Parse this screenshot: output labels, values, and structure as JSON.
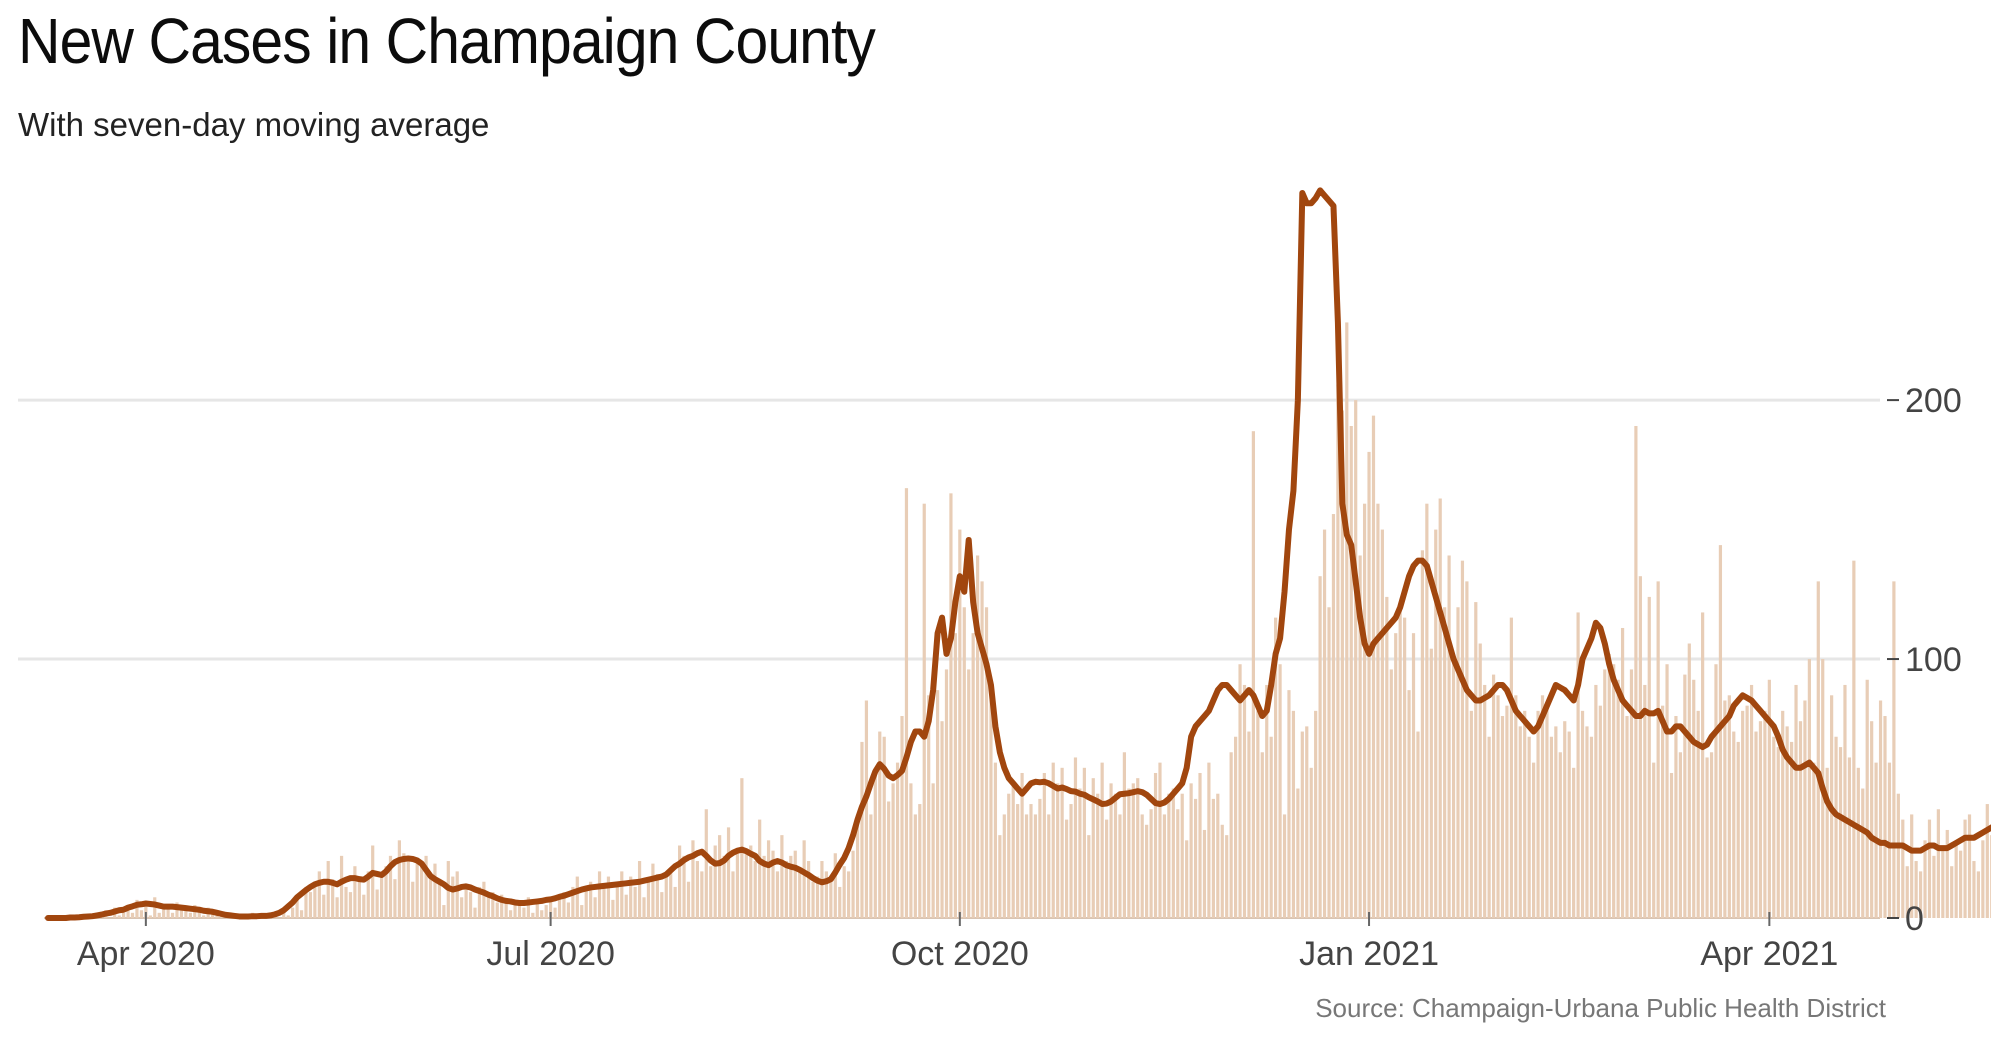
{
  "title": "New Cases in Champaign County",
  "subtitle": "With seven-day moving average",
  "source": "Source: Champaign-Urbana Public Health District",
  "colors": {
    "bars": "#e8cdb6",
    "line": "#a1460e",
    "grid": "#e6e6e6",
    "axis_text": "#444444"
  },
  "chart_data": {
    "type": "bar",
    "overlay": "line",
    "x_ticks": [
      {
        "label": "Apr 2020",
        "date": "2020-04-01"
      },
      {
        "label": "Jul 2020",
        "date": "2020-07-01"
      },
      {
        "label": "Oct 2020",
        "date": "2020-10-01"
      },
      {
        "label": "Jan 2021",
        "date": "2021-01-01"
      },
      {
        "label": "Apr 2021",
        "date": "2021-04-01"
      }
    ],
    "y_ticks": [
      0,
      100,
      200
    ],
    "y_axis_side": "right",
    "xlim": [
      "2020-03-10",
      "2021-04-27"
    ],
    "ylim": [
      0,
      285
    ],
    "grid": "horizontal",
    "series": [
      {
        "type": "bar",
        "x_start": "2020-03-10",
        "values": [
          0,
          0,
          0,
          0,
          0,
          1,
          0,
          0,
          1,
          1,
          0,
          2,
          1,
          3,
          0,
          4,
          1,
          2,
          5,
          2,
          7,
          3,
          6,
          1,
          8,
          2,
          4,
          5,
          2,
          6,
          3,
          4,
          2,
          5,
          3,
          1,
          4,
          2,
          3,
          2,
          0,
          2,
          1,
          0,
          1,
          1,
          2,
          1,
          0,
          1,
          1,
          1,
          0,
          3,
          1,
          4,
          8,
          3,
          12,
          10,
          14,
          18,
          9,
          22,
          15,
          8,
          24,
          12,
          10,
          20,
          14,
          9,
          18,
          28,
          11,
          16,
          20,
          24,
          15,
          30,
          25,
          22,
          14,
          22,
          21,
          24,
          17,
          21,
          14,
          5,
          22,
          16,
          18,
          8,
          12,
          10,
          4,
          12,
          14,
          8,
          10,
          6,
          9,
          7,
          3,
          5,
          6,
          4,
          8,
          2,
          6,
          3,
          5,
          7,
          4,
          9,
          10,
          6,
          12,
          16,
          5,
          11,
          14,
          8,
          18,
          12,
          16,
          7,
          13,
          18,
          9,
          16,
          12,
          22,
          8,
          14,
          21,
          17,
          10,
          16,
          18,
          12,
          28,
          24,
          14,
          30,
          22,
          18,
          42,
          20,
          28,
          32,
          24,
          35,
          18,
          26,
          54,
          25,
          28,
          22,
          38,
          24,
          30,
          26,
          18,
          32,
          22,
          24,
          26,
          18,
          30,
          22,
          14,
          16,
          22,
          18,
          14,
          25,
          12,
          20,
          18,
          26,
          40,
          68,
          84,
          40,
          58,
          72,
          70,
          45,
          52,
          60,
          78,
          166,
          52,
          40,
          44,
          160,
          86,
          52,
          88,
          76,
          96,
          164,
          110,
          150,
          120,
          96,
          110,
          140,
          130,
          120,
          88,
          60,
          32,
          40,
          48,
          52,
          44,
          56,
          40,
          44,
          40,
          46,
          56,
          40,
          60,
          52,
          58,
          38,
          44,
          62,
          50,
          58,
          32,
          54,
          48,
          60,
          38,
          52,
          48,
          40,
          64,
          50,
          52,
          54,
          40,
          36,
          42,
          56,
          60,
          40,
          48,
          50,
          42,
          48,
          30,
          52,
          46,
          56,
          34,
          60,
          46,
          48,
          36,
          32,
          64,
          70,
          98,
          90,
          72,
          188,
          80,
          64,
          90,
          70,
          116,
          98,
          40,
          88,
          80,
          50,
          72,
          74,
          58,
          80,
          132,
          150,
          120,
          156,
          206,
          196,
          230,
          190,
          200,
          140,
          160,
          180,
          194,
          160,
          150,
          124,
          96,
          110,
          122,
          116,
          88,
          110,
          72,
          142,
          160,
          104,
          150,
          162,
          120,
          140,
          100,
          120,
          138,
          130,
          80,
          122,
          106,
          90,
          70,
          94,
          86,
          78,
          82,
          116,
          86,
          74,
          80,
          70,
          60,
          80,
          86,
          82,
          70,
          74,
          64,
          76,
          72,
          58,
          118,
          80,
          74,
          70,
          90,
          82,
          96,
          102,
          98,
          92,
          112,
          78,
          96,
          190,
          132,
          90,
          124,
          60,
          130,
          82,
          98,
          56,
          78,
          64,
          94,
          106,
          92,
          80,
          118,
          62,
          64,
          98,
          144,
          84,
          86,
          72,
          68,
          80,
          82,
          90,
          72,
          76,
          80,
          92,
          70,
          66,
          80,
          74,
          68,
          90,
          76,
          84,
          100,
          60,
          130,
          100,
          58,
          86,
          70,
          66,
          90,
          62,
          138,
          58,
          50,
          92,
          76,
          60,
          84,
          78,
          60,
          130,
          48,
          38,
          20,
          40,
          22,
          18,
          30,
          38,
          24,
          42,
          28,
          34,
          20,
          30,
          26,
          38,
          40,
          22,
          18,
          30,
          44,
          32,
          20,
          18,
          40,
          28,
          34,
          24,
          16,
          42,
          26,
          30,
          38,
          20,
          24,
          56,
          28,
          20,
          44,
          36,
          30,
          26,
          48,
          30,
          42,
          20,
          38,
          60,
          40,
          36,
          28,
          34,
          60,
          44,
          50,
          70,
          46,
          40,
          36,
          58,
          32,
          44,
          48,
          56,
          36,
          54,
          40,
          26,
          50,
          60,
          30,
          36,
          40,
          54,
          38,
          32,
          86,
          50,
          26,
          42,
          56,
          30,
          48,
          60,
          36,
          44,
          72,
          20,
          36,
          30,
          40,
          68
        ]
      },
      {
        "type": "line",
        "name": "seven-day moving average",
        "x_start": "2020-03-10",
        "values": [
          0,
          0,
          0,
          0,
          0,
          0.2,
          0.2,
          0.3,
          0.5,
          0.6,
          0.7,
          1,
          1.3,
          1.7,
          2,
          2.5,
          3,
          3.2,
          4,
          4.5,
          5.1,
          5.3,
          5.6,
          5.4,
          5.2,
          4.8,
          4.4,
          4.4,
          4.4,
          4.2,
          4,
          3.8,
          3.6,
          3.4,
          3.2,
          2.8,
          2.6,
          2.4,
          2,
          1.6,
          1.2,
          1,
          0.8,
          0.6,
          0.6,
          0.6,
          0.7,
          0.7,
          0.8,
          0.8,
          1,
          1.4,
          2,
          3,
          4.5,
          6,
          8,
          9.4,
          10.8,
          12,
          13,
          13.6,
          14,
          14,
          13.6,
          13,
          14,
          14.8,
          15.4,
          15.4,
          15,
          14.8,
          16,
          17.4,
          17,
          16.6,
          18,
          20,
          21.6,
          22.4,
          22.8,
          23,
          22.8,
          22.2,
          21,
          18.6,
          16.2,
          15,
          14,
          13,
          11.6,
          11,
          11.4,
          12,
          12.2,
          11.8,
          11,
          10.4,
          9.8,
          9,
          8.4,
          7.6,
          7,
          6.6,
          6.4,
          6,
          5.8,
          5.8,
          6,
          6.2,
          6.4,
          6.6,
          7,
          7.2,
          7.6,
          8.2,
          8.6,
          9.2,
          9.8,
          10.4,
          11,
          11.4,
          11.8,
          12,
          12.2,
          12.4,
          12.6,
          12.8,
          13,
          13.2,
          13.4,
          13.6,
          13.8,
          14,
          14.4,
          14.8,
          15.2,
          15.6,
          16,
          16.8,
          18.4,
          20,
          21,
          22.4,
          23.4,
          24,
          25,
          25.6,
          24,
          22.2,
          21,
          21.2,
          22.2,
          24,
          25.2,
          26,
          26.4,
          25.8,
          24.8,
          24,
          22,
          21,
          20.4,
          21.4,
          22,
          21.4,
          20.4,
          19.8,
          19.4,
          18.6,
          17.6,
          16.6,
          15.4,
          14.4,
          13.8,
          14.2,
          15,
          17.6,
          20.6,
          23.2,
          27,
          32,
          38,
          43,
          47,
          52,
          56.6,
          59.4,
          57.6,
          55,
          54,
          55.2,
          56.8,
          62,
          68,
          72,
          72,
          70,
          76,
          88,
          110,
          116,
          102,
          108,
          122,
          132,
          126,
          146,
          122,
          110,
          104,
          98,
          90,
          74,
          64,
          58,
          54,
          52,
          50,
          48,
          50,
          52,
          52.6,
          52.4,
          52.6,
          52,
          51,
          50,
          50.4,
          49.8,
          49,
          48.8,
          48,
          47.6,
          46.6,
          45.8,
          45,
          44,
          44.2,
          45,
          46.4,
          47.8,
          48,
          48.2,
          48.6,
          49,
          48.6,
          47.6,
          46,
          44.4,
          44,
          44.6,
          46,
          48,
          50,
          52,
          58,
          70,
          74,
          76,
          78,
          80,
          84,
          88,
          90,
          90,
          88,
          86,
          84,
          86,
          88,
          86,
          82,
          78,
          80,
          90,
          102,
          108,
          126,
          150,
          165,
          200,
          280,
          276,
          276,
          278,
          281,
          279,
          277,
          275,
          230,
          160,
          148,
          144,
          130,
          116,
          106,
          102,
          106,
          108,
          110,
          112,
          114,
          116,
          120,
          126,
          132,
          136,
          138,
          138,
          136,
          130,
          124,
          118,
          112,
          106,
          100,
          96,
          92,
          88,
          86,
          84,
          84,
          85,
          86,
          88,
          90,
          90,
          88,
          84,
          80,
          78,
          76,
          74,
          72,
          74,
          78,
          82,
          86,
          90,
          89,
          88,
          86,
          84,
          90,
          100,
          104,
          108,
          114,
          112,
          106,
          98,
          92,
          88,
          84,
          82,
          80,
          78,
          78,
          80,
          79,
          79,
          80,
          76,
          72,
          72,
          74,
          74,
          72,
          70,
          68,
          67,
          66,
          67,
          70,
          72,
          74,
          76,
          78,
          82,
          84,
          86,
          85,
          84,
          82,
          80,
          78,
          76,
          74,
          70,
          65,
          62,
          60,
          58,
          58,
          59,
          60,
          58,
          56,
          50,
          45,
          42,
          40,
          39,
          38,
          37,
          36,
          35,
          34,
          33,
          31,
          30,
          29,
          29,
          28,
          28,
          28,
          28,
          27,
          26,
          26,
          26,
          27,
          28,
          28,
          27,
          27,
          27,
          28,
          29,
          30,
          31,
          31,
          31,
          32,
          33,
          34,
          35,
          36,
          37,
          37,
          38,
          39,
          40,
          40,
          40,
          39,
          39,
          38,
          39,
          39,
          40,
          41,
          42,
          43,
          44,
          45,
          45,
          46,
          46,
          45,
          44,
          44,
          44,
          43,
          43,
          42,
          42,
          42,
          41,
          41,
          40
        ]
      }
    ]
  }
}
